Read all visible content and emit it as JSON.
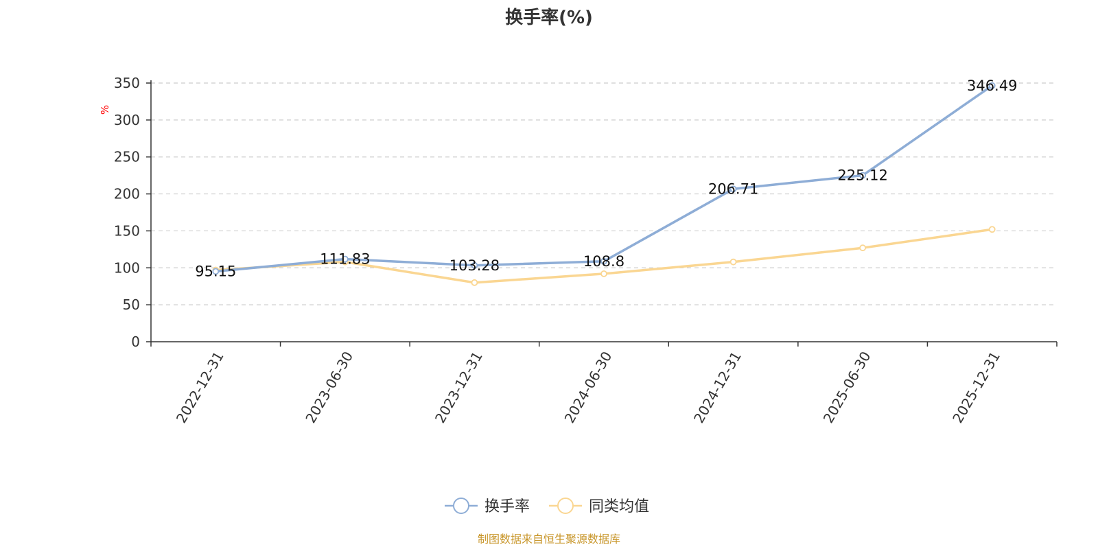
{
  "chart_data": {
    "type": "line",
    "title": "换手率(%)",
    "ylabel": "%",
    "xlabel": "",
    "categories": [
      "2022-12-31",
      "2023-06-30",
      "2023-12-31",
      "2024-06-30",
      "2024-12-31",
      "2025-06-30",
      "2025-12-31"
    ],
    "ylim": [
      0,
      350
    ],
    "yticks": [
      0,
      50,
      100,
      150,
      200,
      250,
      300,
      350
    ],
    "grid": true,
    "legend_position": "bottom-center",
    "series": [
      {
        "name": "换手率",
        "color": "#8eadd6",
        "values": [
          95.15,
          111.83,
          103.28,
          108.8,
          206.71,
          225.12,
          346.49
        ],
        "labels": [
          "95.15",
          "111.83",
          "103.28",
          "108.8",
          "206.71",
          "225.12",
          "346.49"
        ]
      },
      {
        "name": "同类均值",
        "color": "#fad692",
        "values": [
          97,
          108,
          80,
          92,
          108,
          127,
          152
        ]
      }
    ]
  },
  "source_note": "制图数据来自恒生聚源数据库"
}
